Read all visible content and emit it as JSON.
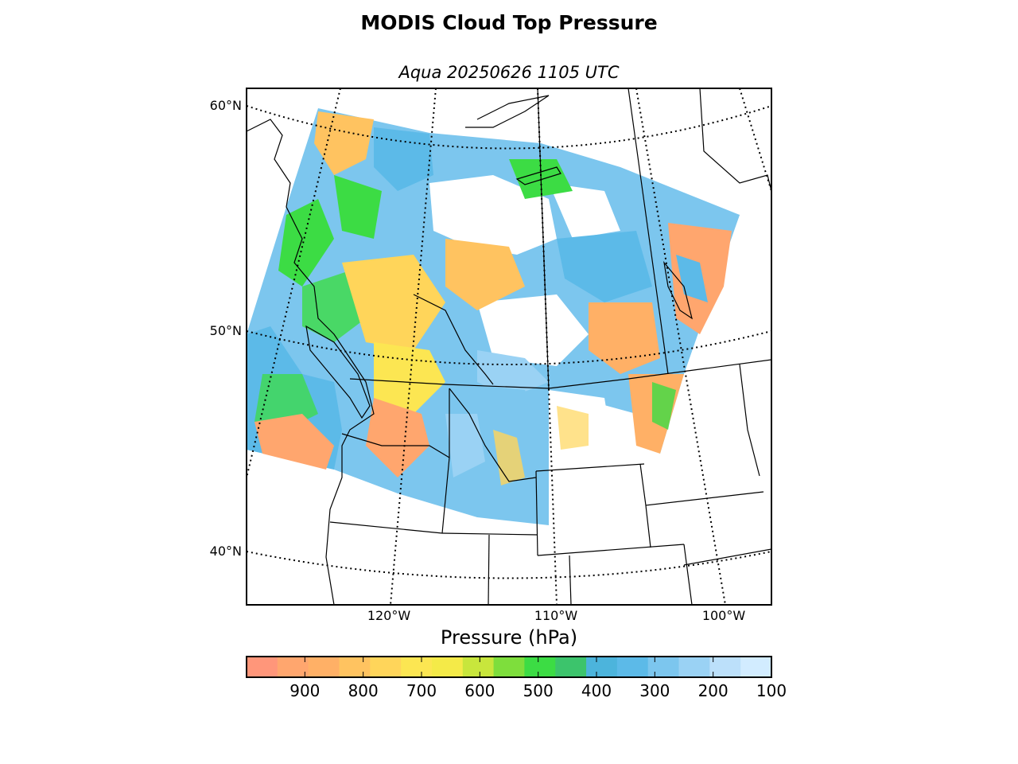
{
  "title": "MODIS Cloud Top Pressure",
  "subtitle": "Aqua 20250626 1105 UTC",
  "lat_labels": [
    "60°N",
    "50°N",
    "40°N"
  ],
  "lon_labels": [
    "120°W",
    "110°W",
    "100°W"
  ],
  "colorbar": {
    "label": "Pressure (hPa)",
    "tick_labels": [
      "900",
      "800",
      "700",
      "600",
      "500",
      "400",
      "300",
      "200",
      "100"
    ],
    "range": [
      1000,
      100
    ],
    "colors": [
      "#ff967a",
      "#ffa66e",
      "#ffb066",
      "#ffc360",
      "#ffd55a",
      "#fce652",
      "#f4ea48",
      "#c8e63c",
      "#7ede3c",
      "#3cdc44",
      "#3cc46c",
      "#4cb4dc",
      "#5cbae8",
      "#7cc6ee",
      "#9ad2f4",
      "#bce0fa",
      "#d2ecff"
    ]
  },
  "map": {
    "projection": "lambert-conformal",
    "lat_range": [
      40,
      60
    ],
    "lon_range": [
      -120,
      -100
    ],
    "graticule": "dotted",
    "coastline_color": "#000000",
    "clear_sky_color": "#ffffff"
  }
}
